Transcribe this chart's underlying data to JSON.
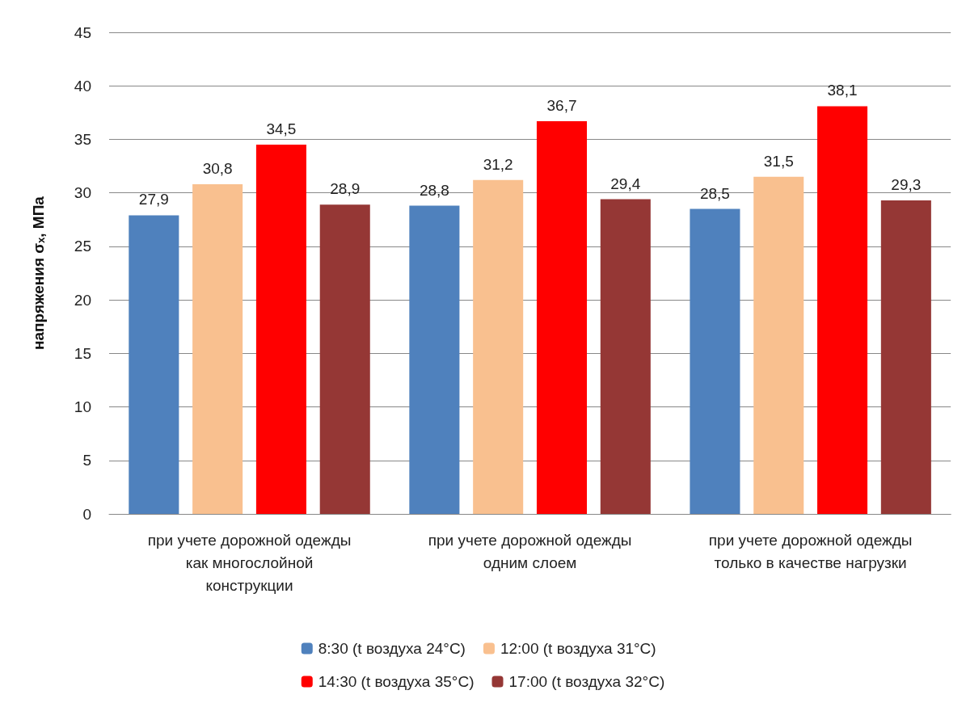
{
  "chart_data": {
    "type": "bar",
    "ylabel": "напряжения σₓ, МПа",
    "categories": [
      "при учете дорожной одежды\nкак многослойной\nконструкции",
      "при учете дорожной одежды\nодним слоем",
      "при учете дорожной одежды\nтолько в качестве нагрузки"
    ],
    "series": [
      {
        "name": "8:30 (t воздуха 24°C)",
        "color": "#4f81bd",
        "values": [
          27.9,
          28.8,
          28.5
        ],
        "value_labels": [
          "27,9",
          "28,8",
          "28,5"
        ]
      },
      {
        "name": "12:00 (t воздуха 31°C)",
        "color": "#f9c08f",
        "values": [
          30.8,
          31.2,
          31.5
        ],
        "value_labels": [
          "30,8",
          "31,2",
          "31,5"
        ]
      },
      {
        "name": "14:30 (t воздуха 35°C)",
        "color": "#ff0000",
        "values": [
          34.5,
          36.7,
          38.1
        ],
        "value_labels": [
          "34,5",
          "36,7",
          "38,1"
        ]
      },
      {
        "name": "17:00 (t воздуха 32°C)",
        "color": "#953735",
        "values": [
          28.9,
          29.4,
          29.3
        ],
        "value_labels": [
          "28,9",
          "29,4",
          "29,3"
        ]
      }
    ],
    "ylim": [
      0,
      45
    ],
    "yticks": [
      0,
      5,
      10,
      15,
      20,
      25,
      30,
      35,
      40,
      45
    ],
    "grid": "y",
    "legend": "bottom"
  }
}
